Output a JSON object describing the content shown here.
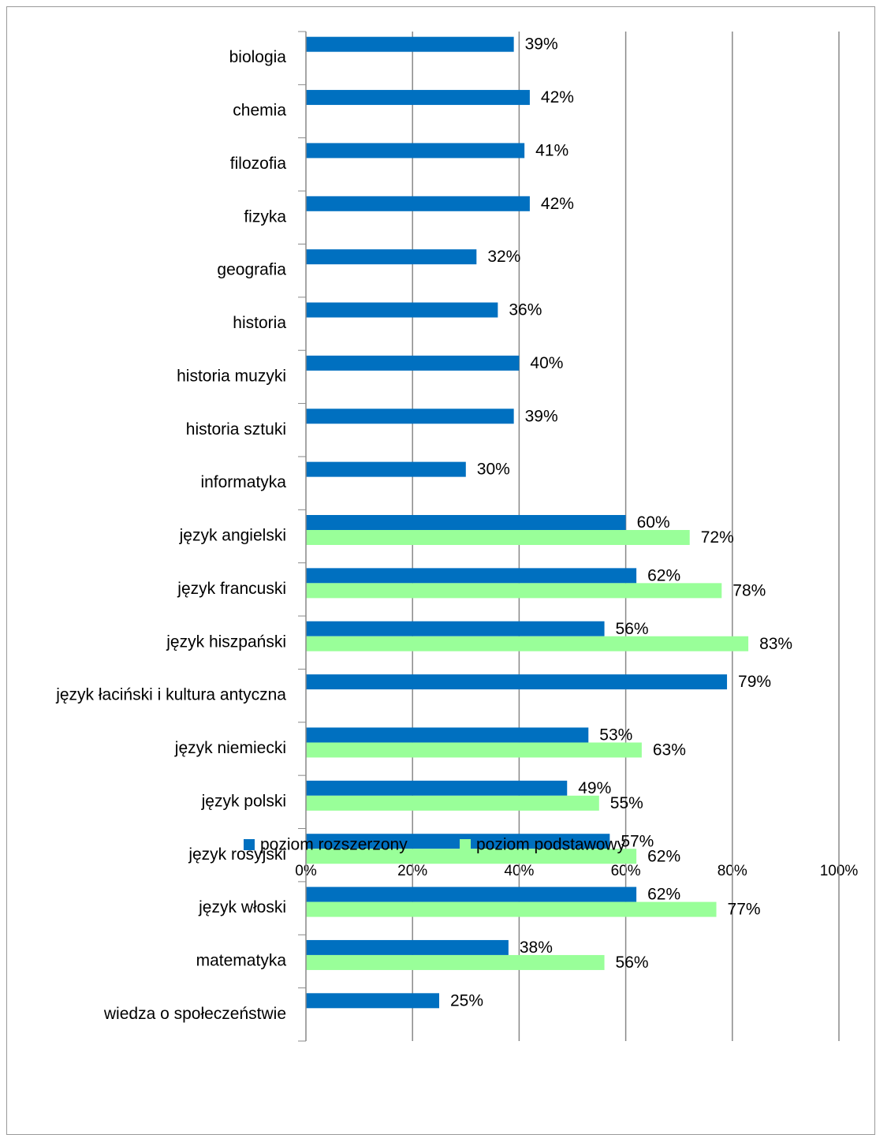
{
  "chart_data": {
    "type": "hbar",
    "categories": [
      "biologia",
      "chemia",
      "filozofia",
      "fizyka",
      "geografia",
      "historia",
      "historia muzyki",
      "historia sztuki",
      "informatyka",
      "język angielski",
      "język francuski",
      "język hiszpański",
      "język łaciński i kultura antyczna",
      "język niemiecki",
      "język polski",
      "język rosyjski",
      "język włoski",
      "matematyka",
      "wiedza o społeczeństwie"
    ],
    "series": [
      {
        "name": "poziom rozszerzony",
        "color": "#0070c0",
        "values": [
          39,
          42,
          41,
          42,
          32,
          36,
          40,
          39,
          30,
          60,
          62,
          56,
          79,
          53,
          49,
          57,
          62,
          38,
          25
        ],
        "value_labels": [
          "39%",
          "42%",
          "41%",
          "42%",
          "32%",
          "36%",
          "40%",
          "39%",
          "30%",
          "60%",
          "62%",
          "56%",
          "79%",
          "53%",
          "49%",
          "57%",
          "62%",
          "38%",
          "25%"
        ]
      },
      {
        "name": "poziom podstawowy",
        "color": "#99ff99",
        "values": [
          null,
          null,
          null,
          null,
          null,
          null,
          null,
          null,
          null,
          72,
          78,
          83,
          null,
          63,
          55,
          62,
          77,
          56,
          null
        ],
        "value_labels": [
          null,
          null,
          null,
          null,
          null,
          null,
          null,
          null,
          null,
          "72%",
          "78%",
          "83%",
          null,
          "63%",
          "55%",
          "62%",
          "77%",
          "56%",
          null
        ]
      }
    ],
    "xlim": [
      0,
      100
    ],
    "xticks": [
      {
        "value": 0,
        "label": "0%"
      },
      {
        "value": 20,
        "label": "20%"
      },
      {
        "value": 40,
        "label": "40%"
      },
      {
        "value": 60,
        "label": "60%"
      },
      {
        "value": 80,
        "label": "80%"
      },
      {
        "value": 100,
        "label": "100%"
      }
    ],
    "grid": true,
    "legend": "bottom"
  }
}
